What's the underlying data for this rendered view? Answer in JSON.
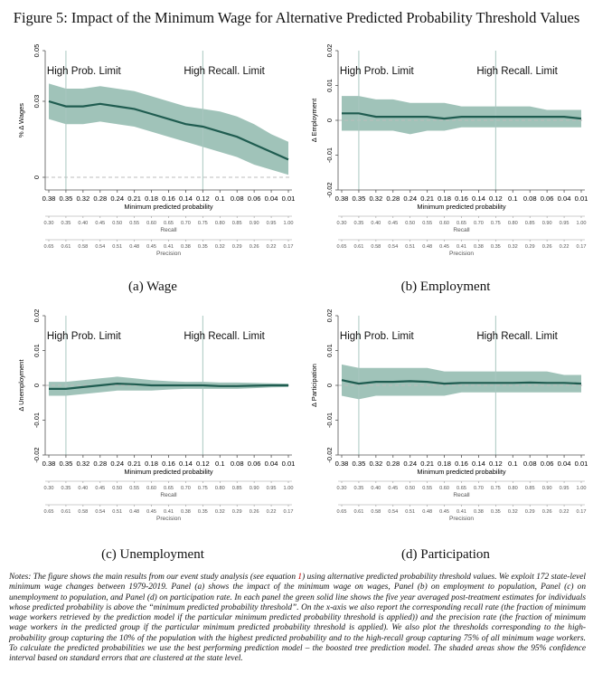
{
  "figure": {
    "title": "Figure 5: Impact of the Minimum Wage for Alternative Predicted Probability Threshold Values",
    "notes_pre": "Notes: The figure shows the main results from our event study analysis (see equation ",
    "notes_ref": "1",
    "notes_post": ") using alternative predicted probability threshold values. We exploit 172 state-level minimum wage changes between 1979-2019. Panel (a) shows the impact of the minimum wage on wages, Panel (b) on employment to population, Panel (c) on unemployment to population, and Panel (d) on participation rate. In each panel the green solid line shows the five year averaged post-treatment estimates for individuals whose predicted probability is above the “minimum predicted probability threshold”. On the x-axis we also report the corresponding recall rate (the fraction of minimum wage workers retrieved by the prediction model if the particular minimum predicted probability threshold is applied)) and the precision rate (the fraction of minimum wage workers in the predicted group if the particular minimum predicted probability threshold is applied). We also plot the thresholds corresponding to the high-probability group capturing the 10% of the population with the highest predicted probability and to the high-recall group capturing 75% of all minimum wage workers. To calculate the predicted probabilities we use the best performing prediction model – the boosted tree prediction model. The shaded areas show the 95% confidence interval based on standard errors that are clustered at the state level."
  },
  "colors": {
    "line": "#1f5c50",
    "band": "#8fb9ad",
    "vline": "#a9c7c0",
    "zero": "#bcbcbc",
    "axis": "#555555"
  },
  "x_axis": {
    "label": "Minimum predicted probability",
    "ticks": [
      "0.38",
      "0.35",
      "0.32",
      "0.28",
      "0.24",
      "0.21",
      "0.18",
      "0.16",
      "0.14",
      "0.12",
      "0.1",
      "0.08",
      "0.06",
      "0.04",
      "0.01"
    ],
    "recall_label": "Recall",
    "recall_ticks": [
      "0.30",
      "0.35",
      "0.40",
      "0.45",
      "0.50",
      "0.55",
      "0.60",
      "0.65",
      "0.70",
      "0.75",
      "0.80",
      "0.85",
      "0.90",
      "0.95",
      "1.00"
    ],
    "precision_label": "Precision",
    "precision_ticks": [
      "0.65",
      "0.61",
      "0.58",
      "0.54",
      "0.51",
      "0.48",
      "0.45",
      "0.41",
      "0.38",
      "0.35",
      "0.32",
      "0.29",
      "0.26",
      "0.22",
      "0.17"
    ]
  },
  "annotations": {
    "high_prob": "High Prob. Limit",
    "high_recall": "High Recall. Limit"
  },
  "chart_data": [
    {
      "type": "line",
      "caption": "(a) Wage",
      "ylabel": "% Δ Wages",
      "ylim": [
        -0.005,
        0.05
      ],
      "yticks": [
        "0",
        "0.03",
        "0.05"
      ],
      "ytick_values": [
        0,
        0.03,
        0.05
      ],
      "vlines_x": [
        "0.35",
        "0.12"
      ],
      "x": [
        "0.38",
        "0.35",
        "0.32",
        "0.28",
        "0.24",
        "0.21",
        "0.18",
        "0.16",
        "0.14",
        "0.12",
        "0.1",
        "0.08",
        "0.06",
        "0.04",
        "0.01"
      ],
      "series": [
        {
          "values": [
            0.03,
            0.028,
            0.028,
            0.029,
            0.028,
            0.027,
            0.025,
            0.023,
            0.021,
            0.02,
            0.018,
            0.016,
            0.013,
            0.01,
            0.007
          ],
          "ci_low": [
            0.023,
            0.021,
            0.021,
            0.022,
            0.021,
            0.02,
            0.018,
            0.016,
            0.014,
            0.012,
            0.01,
            0.008,
            0.005,
            0.003,
            0.001
          ],
          "ci_high": [
            0.037,
            0.035,
            0.035,
            0.036,
            0.035,
            0.034,
            0.032,
            0.03,
            0.028,
            0.027,
            0.026,
            0.024,
            0.021,
            0.017,
            0.014
          ]
        }
      ]
    },
    {
      "type": "line",
      "caption": "(b) Employment",
      "ylabel": "Δ Employment",
      "ylim": [
        -0.02,
        0.02
      ],
      "yticks": [
        "-0.02",
        "-0.01",
        "0",
        "0.01",
        "0.02"
      ],
      "ytick_values": [
        -0.02,
        -0.01,
        0,
        0.01,
        0.02
      ],
      "vlines_x": [
        "0.35",
        "0.12"
      ],
      "x": [
        "0.38",
        "0.35",
        "0.32",
        "0.28",
        "0.24",
        "0.21",
        "0.18",
        "0.16",
        "0.14",
        "0.12",
        "0.1",
        "0.08",
        "0.06",
        "0.04",
        "0.01"
      ],
      "series": [
        {
          "values": [
            0.002,
            0.002,
            0.001,
            0.001,
            0.001,
            0.001,
            0.0005,
            0.001,
            0.001,
            0.001,
            0.001,
            0.001,
            0.001,
            0.001,
            0.0005
          ],
          "ci_low": [
            -0.003,
            -0.003,
            -0.003,
            -0.003,
            -0.004,
            -0.003,
            -0.003,
            -0.002,
            -0.002,
            -0.002,
            -0.002,
            -0.002,
            -0.002,
            -0.002,
            -0.002
          ],
          "ci_high": [
            0.007,
            0.007,
            0.006,
            0.006,
            0.005,
            0.005,
            0.005,
            0.004,
            0.004,
            0.004,
            0.004,
            0.004,
            0.003,
            0.003,
            0.003
          ]
        }
      ]
    },
    {
      "type": "line",
      "caption": "(c) Unemployment",
      "ylabel": "Δ Unemployment",
      "ylim": [
        -0.02,
        0.02
      ],
      "yticks": [
        "-0.02",
        "-0.01",
        "0",
        "0.01",
        "0.02"
      ],
      "ytick_values": [
        -0.02,
        -0.01,
        0,
        0.01,
        0.02
      ],
      "vlines_x": [
        "0.35",
        "0.12"
      ],
      "x": [
        "0.38",
        "0.35",
        "0.32",
        "0.28",
        "0.24",
        "0.21",
        "0.18",
        "0.16",
        "0.14",
        "0.12",
        "0.1",
        "0.08",
        "0.06",
        "0.04",
        "0.01"
      ],
      "series": [
        {
          "values": [
            -0.001,
            -0.001,
            -0.0005,
            0.0,
            0.0005,
            0.0003,
            0.0,
            0.0,
            0.0,
            0.0,
            -0.0002,
            -0.0002,
            -0.0001,
            0.0,
            0.0
          ],
          "ci_low": [
            -0.003,
            -0.003,
            -0.0025,
            -0.002,
            -0.0015,
            -0.0015,
            -0.0015,
            -0.0012,
            -0.001,
            -0.001,
            -0.001,
            -0.001,
            -0.0008,
            -0.0006,
            -0.0005
          ],
          "ci_high": [
            0.001,
            0.001,
            0.0015,
            0.002,
            0.0025,
            0.002,
            0.0015,
            0.0012,
            0.001,
            0.001,
            0.0008,
            0.0008,
            0.0007,
            0.0006,
            0.0005
          ]
        }
      ]
    },
    {
      "type": "line",
      "caption": "(d) Participation",
      "ylabel": "Δ Participation",
      "ylim": [
        -0.02,
        0.02
      ],
      "yticks": [
        "-0.02",
        "-0.01",
        "0",
        "0.01",
        "0.02"
      ],
      "ytick_values": [
        -0.02,
        -0.01,
        0,
        0.01,
        0.02
      ],
      "vlines_x": [
        "0.35",
        "0.12"
      ],
      "x": [
        "0.38",
        "0.35",
        "0.32",
        "0.28",
        "0.24",
        "0.21",
        "0.18",
        "0.16",
        "0.14",
        "0.12",
        "0.1",
        "0.08",
        "0.06",
        "0.04",
        "0.01"
      ],
      "series": [
        {
          "values": [
            0.0015,
            0.0005,
            0.001,
            0.001,
            0.0012,
            0.001,
            0.0005,
            0.0007,
            0.0007,
            0.0007,
            0.0007,
            0.0008,
            0.0007,
            0.0007,
            0.0005
          ],
          "ci_low": [
            -0.003,
            -0.004,
            -0.003,
            -0.003,
            -0.003,
            -0.003,
            -0.003,
            -0.002,
            -0.002,
            -0.002,
            -0.002,
            -0.002,
            -0.002,
            -0.002,
            -0.002
          ],
          "ci_high": [
            0.006,
            0.005,
            0.005,
            0.005,
            0.005,
            0.005,
            0.004,
            0.004,
            0.004,
            0.004,
            0.004,
            0.004,
            0.004,
            0.003,
            0.003
          ]
        }
      ]
    }
  ]
}
